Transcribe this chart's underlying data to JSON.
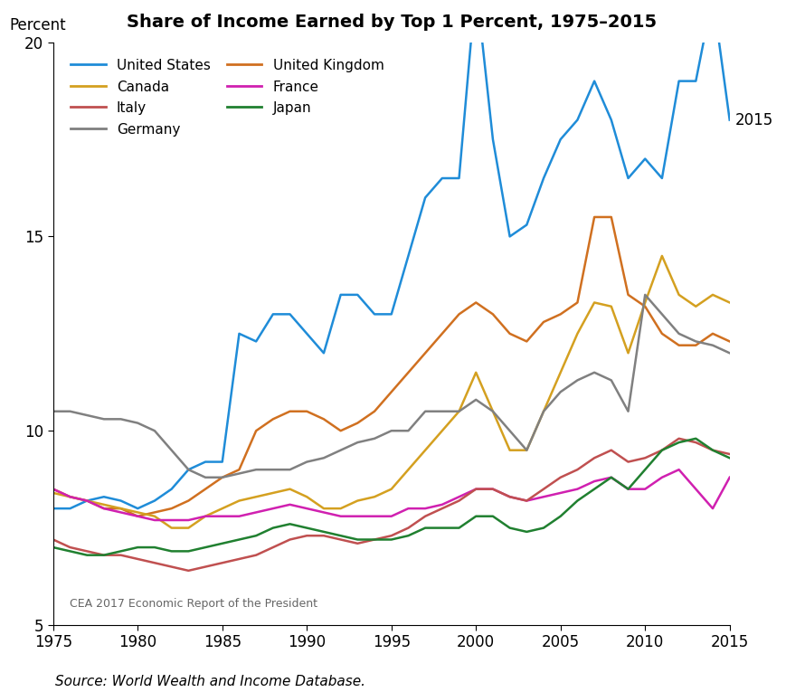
{
  "title": "Share of Income Earned by Top 1 Percent, 1975–2015",
  "ylabel": "Percent",
  "source": "Source: World Wealth and Income Database.",
  "watermark": "CEA 2017 Economic Report of the President",
  "annotation_2015": "2015",
  "ylim": [
    5,
    20
  ],
  "yticks": [
    5,
    10,
    15,
    20
  ],
  "xlim": [
    1975,
    2015
  ],
  "xticks": [
    1975,
    1980,
    1985,
    1990,
    1995,
    2000,
    2005,
    2010,
    2015
  ],
  "series": {
    "United States": {
      "color": "#1f8cd8",
      "years": [
        1975,
        1976,
        1977,
        1978,
        1979,
        1980,
        1981,
        1982,
        1983,
        1984,
        1985,
        1986,
        1987,
        1988,
        1989,
        1990,
        1991,
        1992,
        1993,
        1994,
        1995,
        1996,
        1997,
        1998,
        1999,
        2000,
        2001,
        2002,
        2003,
        2004,
        2005,
        2006,
        2007,
        2008,
        2009,
        2010,
        2011,
        2012,
        2013,
        2014,
        2015
      ],
      "values": [
        8.0,
        8.0,
        8.2,
        8.3,
        8.2,
        8.0,
        8.2,
        8.5,
        9.0,
        9.2,
        9.2,
        12.5,
        12.3,
        13.0,
        13.0,
        12.5,
        12.0,
        13.5,
        13.5,
        13.0,
        13.0,
        14.5,
        16.0,
        16.5,
        16.5,
        21.5,
        17.5,
        15.0,
        15.3,
        16.5,
        17.5,
        18.0,
        19.0,
        18.0,
        16.5,
        17.0,
        16.5,
        19.0,
        19.0,
        21.2,
        18.0
      ]
    },
    "United Kingdom": {
      "color": "#d07020",
      "years": [
        1975,
        1976,
        1977,
        1978,
        1979,
        1980,
        1981,
        1982,
        1983,
        1984,
        1985,
        1986,
        1987,
        1988,
        1989,
        1990,
        1991,
        1992,
        1993,
        1994,
        1995,
        1996,
        1997,
        1998,
        1999,
        2000,
        2001,
        2002,
        2003,
        2004,
        2005,
        2006,
        2007,
        2008,
        2009,
        2010,
        2011,
        2012,
        2013,
        2014,
        2015
      ],
      "values": [
        8.5,
        8.3,
        8.2,
        8.0,
        8.0,
        7.8,
        7.9,
        8.0,
        8.2,
        8.5,
        8.8,
        9.0,
        10.0,
        10.3,
        10.5,
        10.5,
        10.3,
        10.0,
        10.2,
        10.5,
        11.0,
        11.5,
        12.0,
        12.5,
        13.0,
        13.3,
        13.0,
        12.5,
        12.3,
        12.8,
        13.0,
        13.3,
        15.5,
        15.5,
        13.5,
        13.2,
        12.5,
        12.2,
        12.2,
        12.5,
        12.3
      ]
    },
    "Canada": {
      "color": "#d4a020",
      "years": [
        1975,
        1976,
        1977,
        1978,
        1979,
        1980,
        1981,
        1982,
        1983,
        1984,
        1985,
        1986,
        1987,
        1988,
        1989,
        1990,
        1991,
        1992,
        1993,
        1994,
        1995,
        1996,
        1997,
        1998,
        1999,
        2000,
        2001,
        2002,
        2003,
        2004,
        2005,
        2006,
        2007,
        2008,
        2009,
        2010,
        2011,
        2012,
        2013,
        2014,
        2015
      ],
      "values": [
        8.4,
        8.3,
        8.2,
        8.1,
        8.0,
        7.9,
        7.8,
        7.5,
        7.5,
        7.8,
        8.0,
        8.2,
        8.3,
        8.4,
        8.5,
        8.3,
        8.0,
        8.0,
        8.2,
        8.3,
        8.5,
        9.0,
        9.5,
        10.0,
        10.5,
        11.5,
        10.5,
        9.5,
        9.5,
        10.5,
        11.5,
        12.5,
        13.3,
        13.2,
        12.0,
        13.3,
        14.5,
        13.5,
        13.2,
        13.5,
        13.3
      ]
    },
    "France": {
      "color": "#d020b0",
      "years": [
        1975,
        1976,
        1977,
        1978,
        1979,
        1980,
        1981,
        1982,
        1983,
        1984,
        1985,
        1986,
        1987,
        1988,
        1989,
        1990,
        1991,
        1992,
        1993,
        1994,
        1995,
        1996,
        1997,
        1998,
        1999,
        2000,
        2001,
        2002,
        2003,
        2004,
        2005,
        2006,
        2007,
        2008,
        2009,
        2010,
        2011,
        2012,
        2013,
        2014,
        2015
      ],
      "values": [
        8.5,
        8.3,
        8.2,
        8.0,
        7.9,
        7.8,
        7.7,
        7.7,
        7.7,
        7.8,
        7.8,
        7.8,
        7.9,
        8.0,
        8.1,
        8.0,
        7.9,
        7.8,
        7.8,
        7.8,
        7.8,
        8.0,
        8.0,
        8.1,
        8.3,
        8.5,
        8.5,
        8.3,
        8.2,
        8.3,
        8.4,
        8.5,
        8.7,
        8.8,
        8.5,
        8.5,
        8.8,
        9.0,
        8.5,
        8.0,
        8.8
      ]
    },
    "Italy": {
      "color": "#c05050",
      "years": [
        1975,
        1976,
        1977,
        1978,
        1979,
        1980,
        1981,
        1982,
        1983,
        1984,
        1985,
        1986,
        1987,
        1988,
        1989,
        1990,
        1991,
        1992,
        1993,
        1994,
        1995,
        1996,
        1997,
        1998,
        1999,
        2000,
        2001,
        2002,
        2003,
        2004,
        2005,
        2006,
        2007,
        2008,
        2009,
        2010,
        2011,
        2012,
        2013,
        2014,
        2015
      ],
      "values": [
        7.2,
        7.0,
        6.9,
        6.8,
        6.8,
        6.7,
        6.6,
        6.5,
        6.4,
        6.5,
        6.6,
        6.7,
        6.8,
        7.0,
        7.2,
        7.3,
        7.3,
        7.2,
        7.1,
        7.2,
        7.3,
        7.5,
        7.8,
        8.0,
        8.2,
        8.5,
        8.5,
        8.3,
        8.2,
        8.5,
        8.8,
        9.0,
        9.3,
        9.5,
        9.2,
        9.3,
        9.5,
        9.8,
        9.7,
        9.5,
        9.4
      ]
    },
    "Japan": {
      "color": "#208030",
      "years": [
        1975,
        1976,
        1977,
        1978,
        1979,
        1980,
        1981,
        1982,
        1983,
        1984,
        1985,
        1986,
        1987,
        1988,
        1989,
        1990,
        1991,
        1992,
        1993,
        1994,
        1995,
        1996,
        1997,
        1998,
        1999,
        2000,
        2001,
        2002,
        2003,
        2004,
        2005,
        2006,
        2007,
        2008,
        2009,
        2010,
        2011,
        2012,
        2013,
        2014,
        2015
      ],
      "values": [
        7.0,
        6.9,
        6.8,
        6.8,
        6.9,
        7.0,
        7.0,
        6.9,
        6.9,
        7.0,
        7.1,
        7.2,
        7.3,
        7.5,
        7.6,
        7.5,
        7.4,
        7.3,
        7.2,
        7.2,
        7.2,
        7.3,
        7.5,
        7.5,
        7.5,
        7.8,
        7.8,
        7.5,
        7.4,
        7.5,
        7.8,
        8.2,
        8.5,
        8.8,
        8.5,
        9.0,
        9.5,
        9.7,
        9.8,
        9.5,
        9.3
      ]
    },
    "Germany": {
      "color": "#808080",
      "years": [
        1975,
        1976,
        1977,
        1978,
        1979,
        1980,
        1981,
        1982,
        1983,
        1984,
        1985,
        1986,
        1987,
        1988,
        1989,
        1990,
        1991,
        1992,
        1993,
        1994,
        1995,
        1996,
        1997,
        1998,
        1999,
        2000,
        2001,
        2002,
        2003,
        2004,
        2005,
        2006,
        2007,
        2008,
        2009,
        2010,
        2011,
        2012,
        2013,
        2014,
        2015
      ],
      "values": [
        10.5,
        10.5,
        10.4,
        10.3,
        10.3,
        10.2,
        10.0,
        9.5,
        9.0,
        8.8,
        8.8,
        8.9,
        9.0,
        9.0,
        9.0,
        9.2,
        9.3,
        9.5,
        9.7,
        9.8,
        10.0,
        10.0,
        10.5,
        10.5,
        10.5,
        10.8,
        10.5,
        10.0,
        9.5,
        10.5,
        11.0,
        11.3,
        11.5,
        11.3,
        10.5,
        13.5,
        13.0,
        12.5,
        12.3,
        12.2,
        12.0
      ]
    }
  }
}
